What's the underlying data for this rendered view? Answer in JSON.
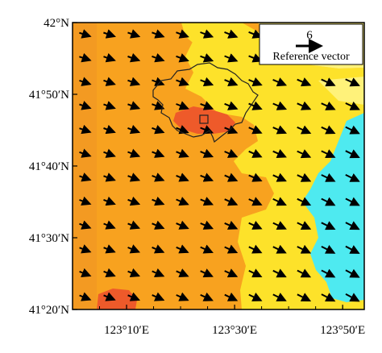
{
  "map": {
    "y_axis": {
      "ticks": [
        {
          "value": 42.0,
          "label": "42°N"
        },
        {
          "value": 41.8333,
          "label": "41°50′N"
        },
        {
          "value": 41.6667,
          "label": "41°40′N"
        },
        {
          "value": 41.5,
          "label": "41°30′N"
        },
        {
          "value": 41.3333,
          "label": "41°20′N"
        }
      ],
      "range": [
        41.3333,
        42.0
      ]
    },
    "x_axis": {
      "ticks": [
        {
          "value": 123.1667,
          "label": "123°10′E"
        },
        {
          "value": 123.5,
          "label": "123°30′E"
        },
        {
          "value": 123.8333,
          "label": "123°50′E"
        }
      ],
      "range": [
        123.0,
        123.9
      ]
    },
    "legend": {
      "position": "top-right",
      "magnitude": "6",
      "label": "Reference vector"
    },
    "wind_field": {
      "direction": "toward east-south-east",
      "note_vectors": "uniform arrows across grid"
    },
    "colors": {
      "orange": "#f8a21f",
      "dark_orange": "#f07428",
      "red_orange": "#ee5a2a",
      "yellow": "#fde22a",
      "light_yellow": "#fff27a",
      "cyan": "#4eeaf0",
      "frame": "#000000",
      "outline": "#222222"
    }
  }
}
